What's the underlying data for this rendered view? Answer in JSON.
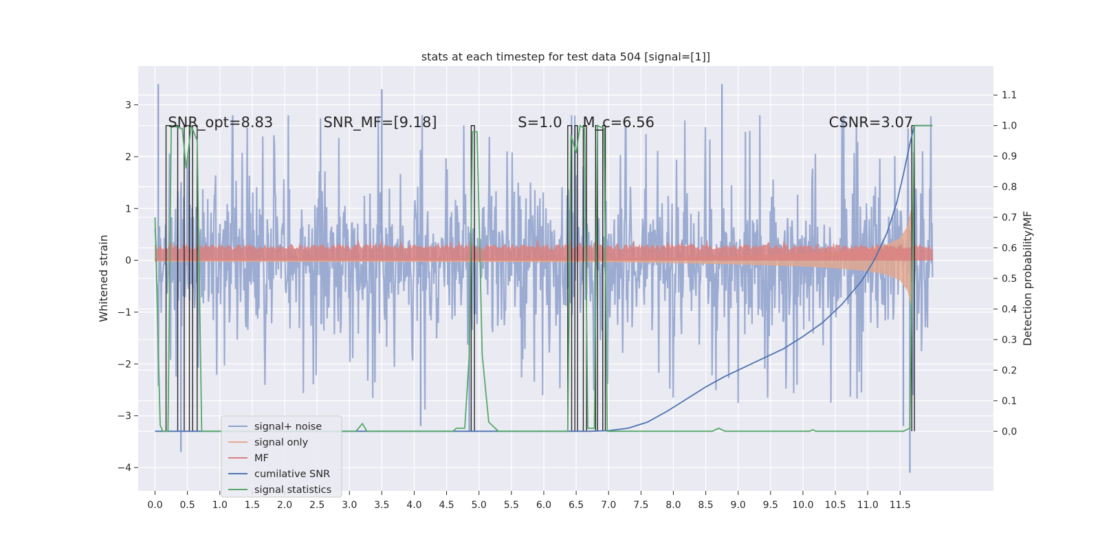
{
  "chart_data": {
    "type": "line",
    "title": "stats at each timestep for test data 504 [signal=[1]]",
    "xlabel": "",
    "ylabel": "Whitened strain",
    "ylabel_right": "Detection probability/MF",
    "xlim": [
      -0.26,
      12.94
    ],
    "ylim": [
      -4.45,
      3.75
    ],
    "ylim_right": [
      -0.195,
      1.195
    ],
    "x_ticks": [
      0.0,
      0.5,
      1.0,
      1.5,
      2.0,
      2.5,
      3.0,
      3.5,
      4.0,
      4.5,
      5.0,
      5.5,
      6.0,
      6.5,
      7.0,
      7.5,
      8.0,
      8.5,
      9.0,
      9.5,
      10.0,
      10.5,
      11.0,
      11.5
    ],
    "x_tick_labels": [
      "0.0",
      "0.5",
      "1.0",
      "1.5",
      "2.0",
      "2.5",
      "3.0",
      "3.5",
      "4.0",
      "4.5",
      "5.0",
      "5.5",
      "6.0",
      "6.5",
      "7.0",
      "7.5",
      "8.0",
      "8.5",
      "9.0",
      "9.5",
      "10.0",
      "10.5",
      "11.0",
      "11.5"
    ],
    "y_ticks": [
      -4,
      -3,
      -2,
      -1,
      0,
      1,
      2,
      3
    ],
    "y_tick_labels": [
      "−4",
      "−3",
      "−2",
      "−1",
      "0",
      "1",
      "2",
      "3"
    ],
    "y_ticks_right": [
      0.0,
      0.1,
      0.2,
      0.3,
      0.4,
      0.5,
      0.6,
      0.7,
      0.8,
      0.9,
      1.0,
      1.1
    ],
    "y_tick_labels_right": [
      "0.0",
      "0.1",
      "0.2",
      "0.3",
      "0.4",
      "0.5",
      "0.6",
      "0.7",
      "0.8",
      "0.9",
      "1.0",
      "1.1"
    ],
    "grid": true,
    "legend_position": "lower-left",
    "annotations": [
      {
        "x": 0.2,
        "text": "SNR_opt=8.83"
      },
      {
        "x": 2.6,
        "text": "SNR_MF=[9.18]"
      },
      {
        "x": 5.6,
        "text": "S=1.0"
      },
      {
        "x": 6.6,
        "text": "M_c=6.56"
      },
      {
        "x": 10.4,
        "text": "CSNR=3.07"
      }
    ],
    "series": [
      {
        "name": "signal+ noise",
        "color": "#8da0cb",
        "kind": "noise",
        "x_range": [
          0.0,
          12.0
        ],
        "envelope": 1.9,
        "spikes": [
          {
            "x": 0.05,
            "y": 3.4
          },
          {
            "x": 0.4,
            "y": -3.7
          },
          {
            "x": 3.5,
            "y": 3.3
          },
          {
            "x": 4.1,
            "y": -3.2
          },
          {
            "x": 4.85,
            "y": -3.3
          },
          {
            "x": 8.75,
            "y": 3.4
          },
          {
            "x": 11.65,
            "y": -4.1
          },
          {
            "x": 11.55,
            "y": -3.2
          }
        ]
      },
      {
        "name": "signal only",
        "color": "#e5a88c",
        "kind": "chirp",
        "points": [
          [
            0.0,
            0.02
          ],
          [
            7.0,
            0.03
          ],
          [
            8.0,
            0.05
          ],
          [
            9.0,
            0.08
          ],
          [
            10.0,
            0.12
          ],
          [
            10.5,
            0.16
          ],
          [
            11.0,
            0.22
          ],
          [
            11.3,
            0.3
          ],
          [
            11.5,
            0.42
          ],
          [
            11.62,
            0.65
          ],
          [
            11.68,
            1.0
          ],
          [
            11.7,
            0.0
          ]
        ]
      },
      {
        "name": "MF",
        "color": "#d98080",
        "kind": "band",
        "y_range_right": [
          0.55,
          0.6
        ]
      },
      {
        "name": "cumilative SNR",
        "color": "#4c72b0",
        "points": [
          [
            0.0,
            0.0
          ],
          [
            6.7,
            0.0
          ],
          [
            7.0,
            0.002
          ],
          [
            7.3,
            0.01
          ],
          [
            7.6,
            0.03
          ],
          [
            7.9,
            0.065
          ],
          [
            8.2,
            0.105
          ],
          [
            8.5,
            0.145
          ],
          [
            8.8,
            0.18
          ],
          [
            9.1,
            0.21
          ],
          [
            9.4,
            0.24
          ],
          [
            9.7,
            0.27
          ],
          [
            10.0,
            0.31
          ],
          [
            10.3,
            0.355
          ],
          [
            10.6,
            0.415
          ],
          [
            10.9,
            0.49
          ],
          [
            11.1,
            0.56
          ],
          [
            11.3,
            0.65
          ],
          [
            11.45,
            0.75
          ],
          [
            11.55,
            0.84
          ],
          [
            11.65,
            0.94
          ],
          [
            11.72,
            1.0
          ],
          [
            12.0,
            1.0
          ]
        ]
      },
      {
        "name": "signal statistics",
        "color": "#55a868",
        "points": [
          [
            0.0,
            0.7
          ],
          [
            0.08,
            0.02
          ],
          [
            0.12,
            0.0
          ],
          [
            0.2,
            0.0
          ],
          [
            0.25,
            1.0
          ],
          [
            0.42,
            0.99
          ],
          [
            0.48,
            0.86
          ],
          [
            0.56,
            1.0
          ],
          [
            0.65,
            0.95
          ],
          [
            0.72,
            0.0
          ],
          [
            3.1,
            0.0
          ],
          [
            3.2,
            0.025
          ],
          [
            3.27,
            0.0
          ],
          [
            4.6,
            0.0
          ],
          [
            4.65,
            0.01
          ],
          [
            4.78,
            0.01
          ],
          [
            4.85,
            0.25
          ],
          [
            4.9,
            0.98
          ],
          [
            4.97,
            0.98
          ],
          [
            5.05,
            0.25
          ],
          [
            5.15,
            0.03
          ],
          [
            5.3,
            0.0
          ],
          [
            6.37,
            0.0
          ],
          [
            6.42,
            0.97
          ],
          [
            6.5,
            0.91
          ],
          [
            6.56,
            1.0
          ],
          [
            6.63,
            0.99
          ],
          [
            6.68,
            0.01
          ],
          [
            6.78,
            0.01
          ],
          [
            6.83,
            1.0
          ],
          [
            6.93,
            0.99
          ],
          [
            6.98,
            0.0
          ],
          [
            8.6,
            0.0
          ],
          [
            8.7,
            0.01
          ],
          [
            8.8,
            0.0
          ],
          [
            10.1,
            0.0
          ],
          [
            10.15,
            0.005
          ],
          [
            10.2,
            0.0
          ],
          [
            11.55,
            0.0
          ],
          [
            11.65,
            0.01
          ],
          [
            11.72,
            1.0
          ],
          [
            12.0,
            1.0
          ]
        ]
      }
    ],
    "detection_windows": [
      [
        0.17,
        0.35
      ],
      [
        0.45,
        0.53
      ],
      [
        0.58,
        0.65
      ],
      [
        4.88,
        4.93
      ],
      [
        6.37,
        6.43
      ],
      [
        6.48,
        6.52
      ],
      [
        6.61,
        6.66
      ],
      [
        6.8,
        6.83
      ],
      [
        6.91,
        6.95
      ],
      [
        11.68,
        11.72
      ]
    ],
    "detection_color": "#262626"
  }
}
